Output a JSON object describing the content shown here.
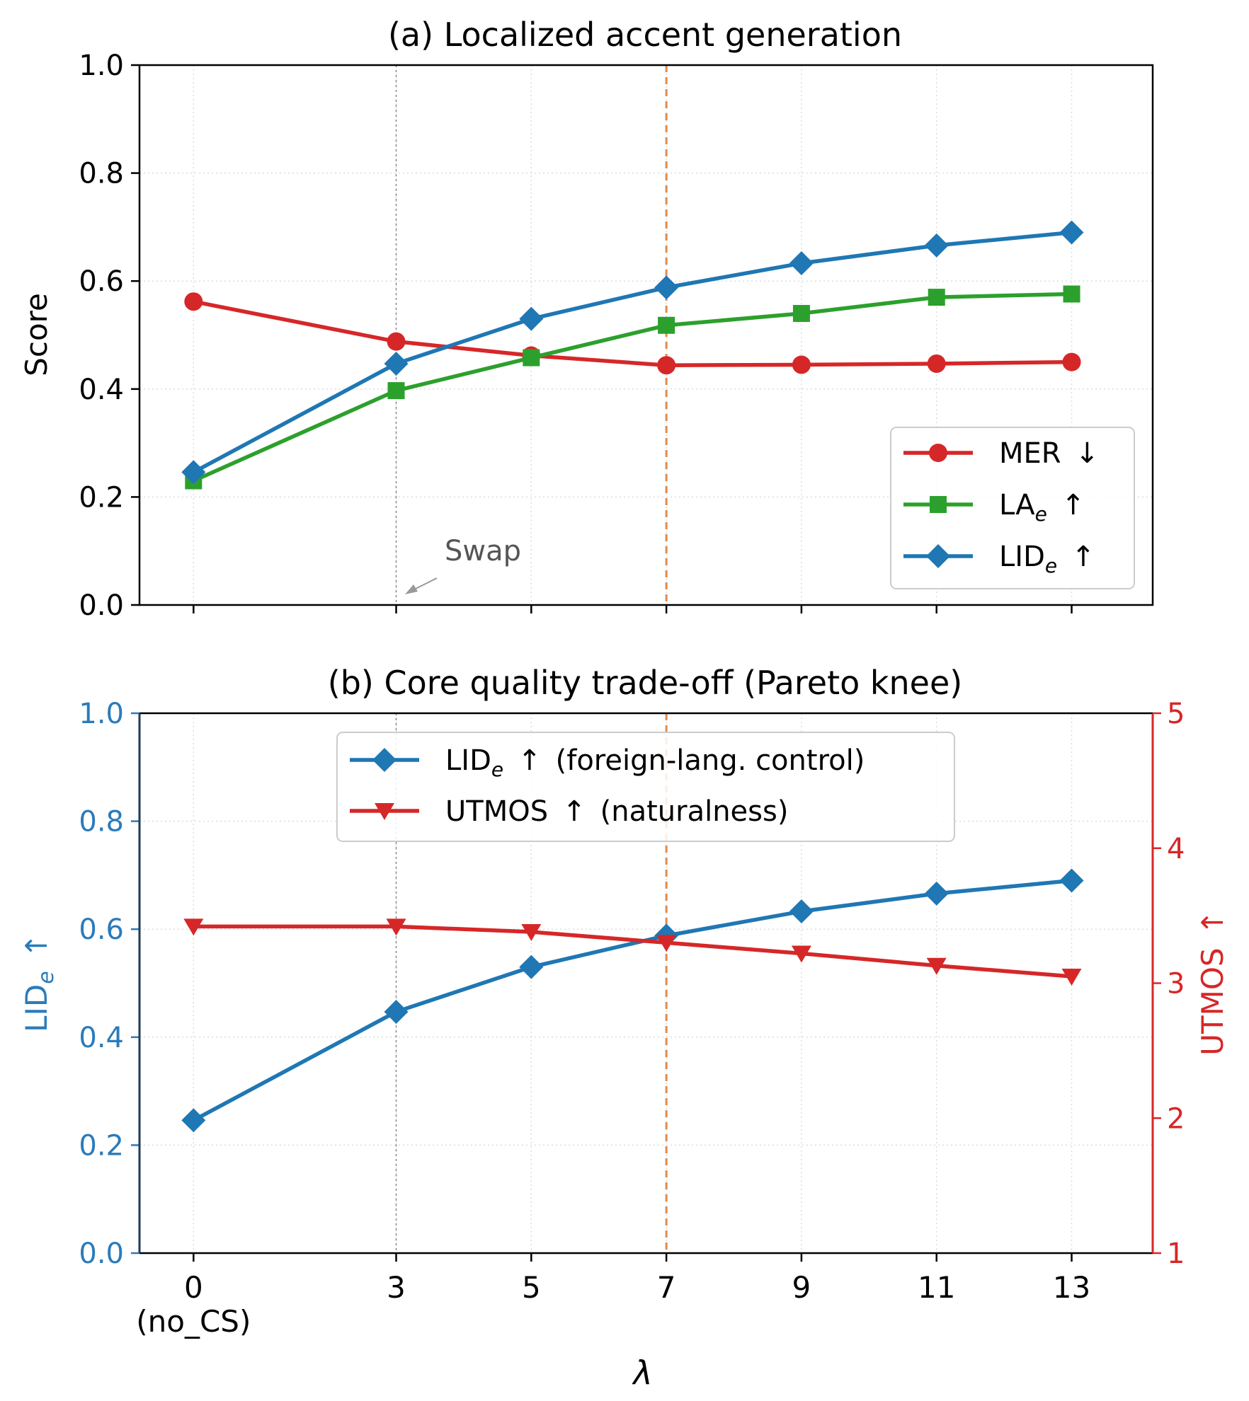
{
  "chart_data": [
    {
      "type": "line",
      "title": "(a) Localized accent generation",
      "xlabel": "",
      "ylabel": "Score",
      "x": [
        0,
        3,
        5,
        7,
        9,
        11,
        13
      ],
      "x_tick_labels": [
        "0",
        "3",
        "5",
        "7",
        "9",
        "11",
        "13"
      ],
      "x_tick_sublabel": "(no_CS)",
      "ylim": [
        0,
        1.0
      ],
      "y_ticks": [
        "0.0",
        "0.2",
        "0.4",
        "0.6",
        "0.8",
        "1.0"
      ],
      "grid": true,
      "legend_position": "lower-right",
      "series": [
        {
          "name": "MER",
          "arrow": "↓",
          "marker": "circle",
          "color": "#d62728",
          "values": [
            0.562,
            0.488,
            0.462,
            0.444,
            0.445,
            0.447,
            0.45
          ]
        },
        {
          "name": "LA",
          "sub": "e",
          "arrow": "↑",
          "marker": "square",
          "color": "#2ca02c",
          "values": [
            0.23,
            0.397,
            0.458,
            0.518,
            0.54,
            0.57,
            0.576
          ]
        },
        {
          "name": "LID",
          "sub": "e",
          "arrow": "↑",
          "marker": "diamond",
          "color": "#1f77b4",
          "values": [
            0.246,
            0.447,
            0.53,
            0.588,
            0.633,
            0.666,
            0.69
          ]
        }
      ],
      "annotations": [
        {
          "text": "Swap",
          "x": 3,
          "color": "#555555"
        }
      ],
      "vlines": [
        {
          "x": 3,
          "style": "dotted",
          "color": "#888888"
        },
        {
          "x": 7,
          "style": "dashed",
          "color": "#e08a4a"
        }
      ]
    },
    {
      "type": "line",
      "title": "(b) Core quality trade-off (Pareto knee)",
      "xlabel": "λ",
      "ylabel_left": {
        "text": "LID",
        "sub": "e",
        "arrow": "↑",
        "color": "#2b7bba"
      },
      "ylabel_right": {
        "text": "UTMOS",
        "arrow": "↑",
        "color": "#d62728"
      },
      "x": [
        0,
        3,
        5,
        7,
        9,
        11,
        13
      ],
      "x_tick_labels": [
        "0",
        "3",
        "5",
        "7",
        "9",
        "11",
        "13"
      ],
      "x_tick_sublabel": "(no_CS)",
      "ylim_left": [
        0,
        1.0
      ],
      "y_ticks_left": [
        "0.0",
        "0.2",
        "0.4",
        "0.6",
        "0.8",
        "1.0"
      ],
      "ylim_right": [
        1,
        5
      ],
      "y_ticks_right": [
        "1",
        "2",
        "3",
        "4",
        "5"
      ],
      "grid": true,
      "legend_position": "top-center",
      "series": [
        {
          "name": "LID",
          "sub": "e",
          "arrow": "↑",
          "note": "(foreign-lang. control)",
          "marker": "diamond",
          "color": "#1f77b4",
          "axis": "left",
          "values": [
            0.246,
            0.447,
            0.53,
            0.588,
            0.633,
            0.666,
            0.69
          ]
        },
        {
          "name": "UTMOS",
          "arrow": "↑",
          "note": "(naturalness)",
          "marker": "triangle-down",
          "color": "#d62728",
          "axis": "right",
          "values": [
            3.42,
            3.42,
            3.38,
            3.3,
            3.22,
            3.13,
            3.05
          ]
        }
      ],
      "vlines": [
        {
          "x": 3,
          "style": "dotted",
          "color": "#888888"
        },
        {
          "x": 7,
          "style": "dashed",
          "color": "#e08a4a"
        }
      ]
    }
  ]
}
